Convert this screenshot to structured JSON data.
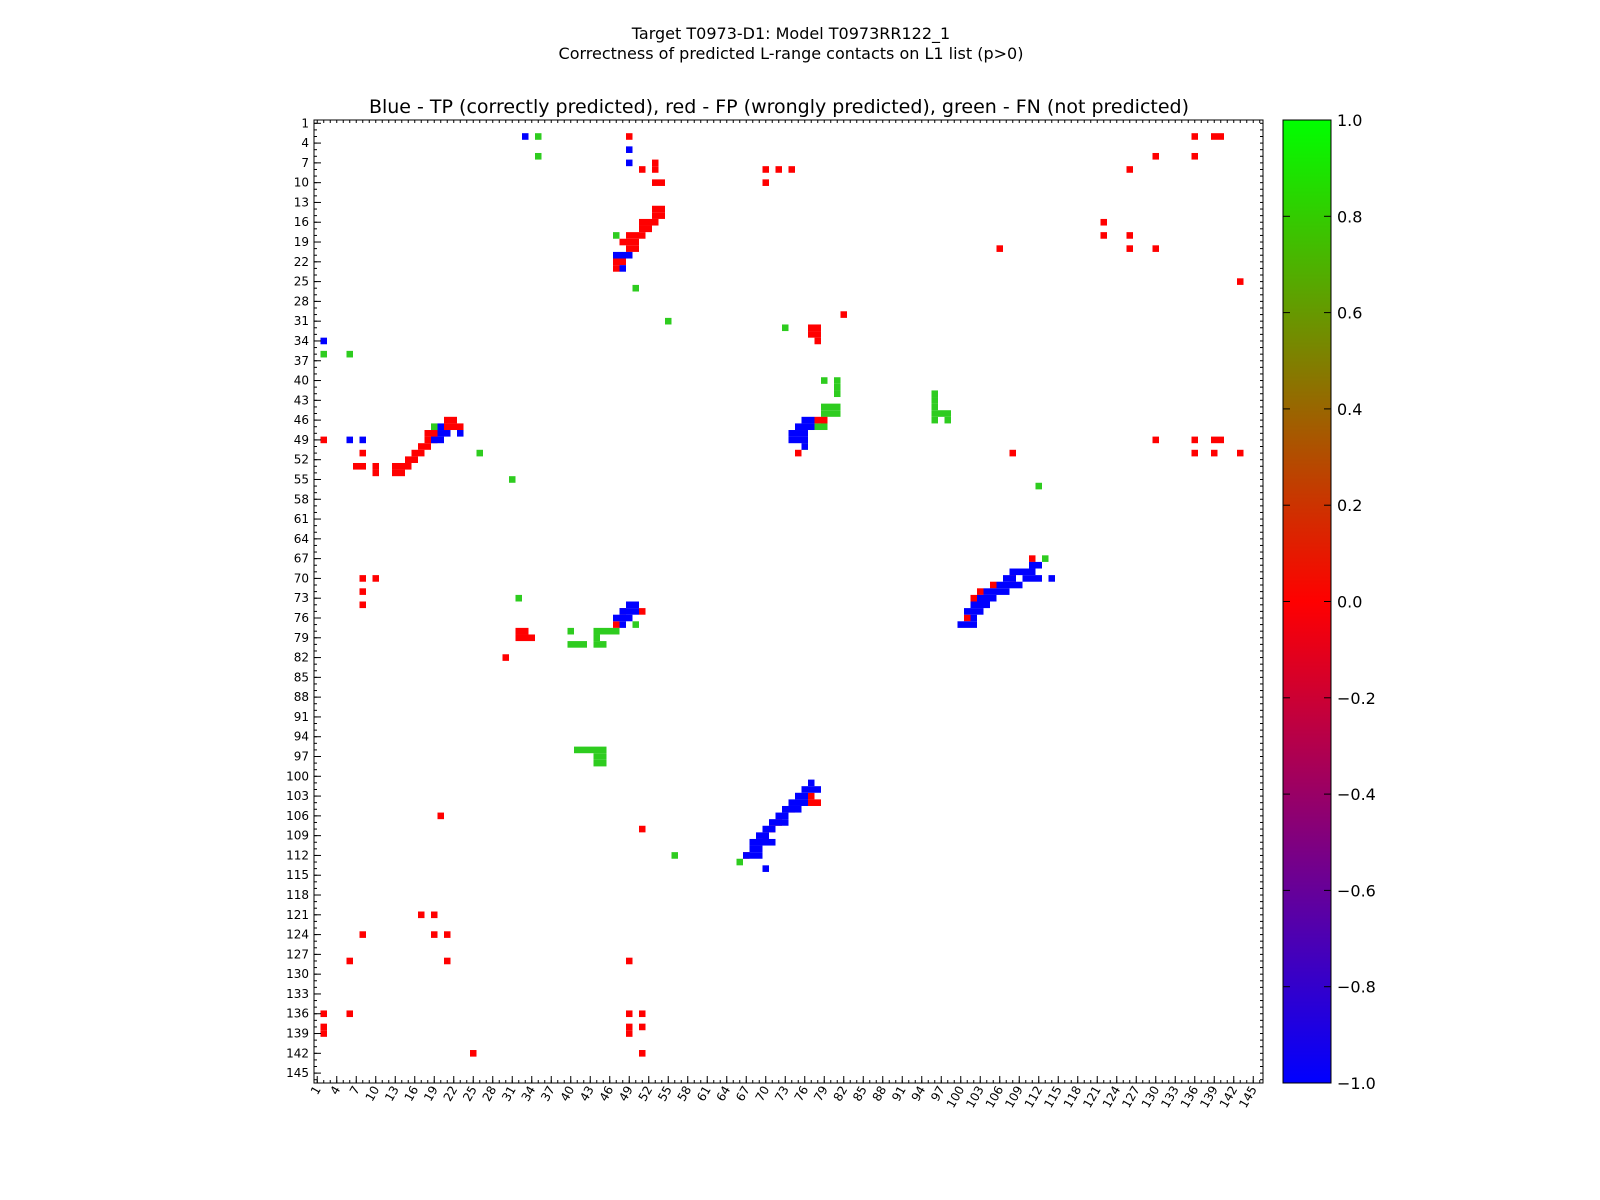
{
  "chart_data": {
    "type": "heatmap",
    "title_line1": "Target T0973-D1: Model T0973RR122_1",
    "title_line2": "Correctness of predicted L-range contacts on L1 list (p>0)",
    "subtitle": "Blue - TP (correctly predicted), red - FP (wrongly predicted), green - FN (not predicted)",
    "xlabel": "",
    "ylabel": "",
    "xlim": [
      1,
      146
    ],
    "ylim": [
      1,
      146
    ],
    "y_inverted": true,
    "grid": false,
    "ticks": [
      "1",
      "4",
      "7",
      "10",
      "13",
      "16",
      "19",
      "22",
      "25",
      "28",
      "31",
      "34",
      "37",
      "40",
      "43",
      "46",
      "49",
      "52",
      "55",
      "58",
      "61",
      "64",
      "67",
      "70",
      "73",
      "76",
      "79",
      "82",
      "85",
      "88",
      "91",
      "94",
      "97",
      "100",
      "103",
      "106",
      "109",
      "112",
      "115",
      "118",
      "121",
      "124",
      "127",
      "130",
      "133",
      "136",
      "139",
      "142",
      "145"
    ],
    "colorbar": {
      "min": -1.0,
      "max": 1.0,
      "ticks": [
        "1.0",
        "0.8",
        "0.6",
        "0.4",
        "0.2",
        "0.0",
        "−0.2",
        "−0.4",
        "−0.6",
        "−0.8",
        "−1.0"
      ],
      "colors": [
        "#0000ff",
        "#ff0000",
        "#00ff00"
      ]
    },
    "category_colors": {
      "TP": "#0000ff",
      "FP": "#ff0000",
      "FN": "#2ecc1f"
    },
    "points": {
      "TP": [
        [
          33,
          3
        ],
        [
          49,
          5
        ],
        [
          49,
          7
        ],
        [
          2,
          34
        ],
        [
          6,
          49
        ],
        [
          8,
          49
        ],
        [
          48,
          21
        ],
        [
          47,
          21
        ],
        [
          49,
          21
        ],
        [
          48,
          23
        ],
        [
          20,
          47
        ],
        [
          20,
          48
        ],
        [
          20,
          49
        ],
        [
          19,
          49
        ],
        [
          21,
          48
        ],
        [
          23,
          48
        ],
        [
          74,
          48
        ],
        [
          74,
          49
        ],
        [
          75,
          48
        ],
        [
          75,
          49
        ],
        [
          76,
          48
        ],
        [
          76,
          49
        ],
        [
          75,
          47
        ],
        [
          76,
          47
        ],
        [
          77,
          47
        ],
        [
          76,
          46
        ],
        [
          77,
          46
        ],
        [
          76,
          50
        ],
        [
          49,
          74
        ],
        [
          50,
          74
        ],
        [
          48,
          75
        ],
        [
          49,
          75
        ],
        [
          50,
          75
        ],
        [
          47,
          76
        ],
        [
          48,
          76
        ],
        [
          49,
          76
        ],
        [
          48,
          77
        ],
        [
          108,
          69
        ],
        [
          109,
          69
        ],
        [
          110,
          69
        ],
        [
          111,
          69
        ],
        [
          110,
          70
        ],
        [
          111,
          70
        ],
        [
          112,
          70
        ],
        [
          107,
          70
        ],
        [
          108,
          70
        ],
        [
          106,
          71
        ],
        [
          107,
          71
        ],
        [
          108,
          71
        ],
        [
          109,
          71
        ],
        [
          104,
          72
        ],
        [
          105,
          72
        ],
        [
          106,
          72
        ],
        [
          107,
          72
        ],
        [
          103,
          73
        ],
        [
          104,
          73
        ],
        [
          105,
          73
        ],
        [
          102,
          74
        ],
        [
          103,
          74
        ],
        [
          104,
          74
        ],
        [
          101,
          75
        ],
        [
          102,
          75
        ],
        [
          103,
          75
        ],
        [
          102,
          76
        ],
        [
          100,
          77
        ],
        [
          101,
          77
        ],
        [
          102,
          77
        ],
        [
          111,
          68
        ],
        [
          112,
          68
        ],
        [
          114,
          70
        ],
        [
          77,
          101
        ],
        [
          76,
          102
        ],
        [
          77,
          102
        ],
        [
          78,
          102
        ],
        [
          75,
          103
        ],
        [
          76,
          103
        ],
        [
          74,
          104
        ],
        [
          75,
          104
        ],
        [
          76,
          104
        ],
        [
          73,
          105
        ],
        [
          74,
          105
        ],
        [
          75,
          105
        ],
        [
          72,
          106
        ],
        [
          73,
          106
        ],
        [
          71,
          107
        ],
        [
          72,
          107
        ],
        [
          73,
          107
        ],
        [
          70,
          108
        ],
        [
          71,
          108
        ],
        [
          69,
          109
        ],
        [
          70,
          109
        ],
        [
          68,
          110
        ],
        [
          69,
          110
        ],
        [
          70,
          110
        ],
        [
          71,
          110
        ],
        [
          68,
          111
        ],
        [
          69,
          111
        ],
        [
          67,
          112
        ],
        [
          68,
          112
        ],
        [
          69,
          112
        ],
        [
          70,
          114
        ]
      ],
      "FP": [
        [
          49,
          3
        ],
        [
          136,
          3
        ],
        [
          139,
          3
        ],
        [
          140,
          3
        ],
        [
          130,
          6
        ],
        [
          136,
          6
        ],
        [
          53,
          7
        ],
        [
          51,
          8
        ],
        [
          53,
          8
        ],
        [
          70,
          8
        ],
        [
          72,
          8
        ],
        [
          74,
          8
        ],
        [
          126,
          8
        ],
        [
          53,
          10
        ],
        [
          54,
          10
        ],
        [
          70,
          10
        ],
        [
          53,
          14
        ],
        [
          54,
          14
        ],
        [
          53,
          15
        ],
        [
          54,
          15
        ],
        [
          51,
          16
        ],
        [
          52,
          16
        ],
        [
          51,
          17
        ],
        [
          52,
          17
        ],
        [
          53,
          16
        ],
        [
          49,
          18
        ],
        [
          50,
          18
        ],
        [
          51,
          18
        ],
        [
          48,
          19
        ],
        [
          49,
          19
        ],
        [
          50,
          19
        ],
        [
          49,
          20
        ],
        [
          50,
          20
        ],
        [
          47,
          22
        ],
        [
          48,
          22
        ],
        [
          47,
          23
        ],
        [
          106,
          20
        ],
        [
          122,
          16
        ],
        [
          122,
          18
        ],
        [
          126,
          18
        ],
        [
          126,
          20
        ],
        [
          130,
          20
        ],
        [
          143,
          25
        ],
        [
          82,
          30
        ],
        [
          77,
          32
        ],
        [
          78,
          32
        ],
        [
          77,
          33
        ],
        [
          78,
          33
        ],
        [
          78,
          34
        ],
        [
          21,
          46
        ],
        [
          22,
          46
        ],
        [
          21,
          47
        ],
        [
          22,
          47
        ],
        [
          23,
          47
        ],
        [
          18,
          48
        ],
        [
          19,
          48
        ],
        [
          18,
          49
        ],
        [
          19,
          49
        ],
        [
          17,
          50
        ],
        [
          18,
          50
        ],
        [
          16,
          51
        ],
        [
          17,
          51
        ],
        [
          8,
          51
        ],
        [
          15,
          52
        ],
        [
          16,
          52
        ],
        [
          7,
          53
        ],
        [
          8,
          53
        ],
        [
          10,
          53
        ],
        [
          13,
          53
        ],
        [
          14,
          53
        ],
        [
          15,
          53
        ],
        [
          10,
          54
        ],
        [
          13,
          54
        ],
        [
          14,
          54
        ],
        [
          2,
          49
        ],
        [
          78,
          46
        ],
        [
          79,
          46
        ],
        [
          75,
          51
        ],
        [
          108,
          51
        ],
        [
          130,
          49
        ],
        [
          136,
          49
        ],
        [
          139,
          49
        ],
        [
          140,
          49
        ],
        [
          136,
          51
        ],
        [
          139,
          51
        ],
        [
          143,
          51
        ],
        [
          111,
          67
        ],
        [
          8,
          70
        ],
        [
          10,
          70
        ],
        [
          8,
          72
        ],
        [
          8,
          74
        ],
        [
          48,
          75
        ],
        [
          51,
          75
        ],
        [
          47,
          77
        ],
        [
          32,
          78
        ],
        [
          33,
          78
        ],
        [
          32,
          79
        ],
        [
          33,
          79
        ],
        [
          34,
          79
        ],
        [
          30,
          82
        ],
        [
          108,
          70
        ],
        [
          105,
          71
        ],
        [
          103,
          72
        ],
        [
          102,
          73
        ],
        [
          101,
          76
        ],
        [
          77,
          103
        ],
        [
          77,
          104
        ],
        [
          78,
          104
        ],
        [
          74,
          105
        ],
        [
          72,
          107
        ],
        [
          71,
          108
        ],
        [
          70,
          109
        ],
        [
          67,
          112
        ],
        [
          20,
          106
        ],
        [
          51,
          108
        ],
        [
          17,
          121
        ],
        [
          19,
          121
        ],
        [
          8,
          124
        ],
        [
          19,
          124
        ],
        [
          21,
          124
        ],
        [
          6,
          128
        ],
        [
          21,
          128
        ],
        [
          49,
          128
        ],
        [
          2,
          136
        ],
        [
          6,
          136
        ],
        [
          49,
          136
        ],
        [
          51,
          136
        ],
        [
          2,
          138
        ],
        [
          2,
          139
        ],
        [
          49,
          138
        ],
        [
          49,
          139
        ],
        [
          51,
          138
        ],
        [
          25,
          142
        ],
        [
          51,
          142
        ]
      ],
      "FN": [
        [
          35,
          3
        ],
        [
          35,
          6
        ],
        [
          47,
          18
        ],
        [
          50,
          26
        ],
        [
          55,
          31
        ],
        [
          73,
          32
        ],
        [
          2,
          36
        ],
        [
          6,
          36
        ],
        [
          79,
          40
        ],
        [
          81,
          40
        ],
        [
          81,
          41
        ],
        [
          81,
          42
        ],
        [
          79,
          44
        ],
        [
          80,
          44
        ],
        [
          81,
          44
        ],
        [
          79,
          45
        ],
        [
          80,
          45
        ],
        [
          81,
          45
        ],
        [
          79,
          46
        ],
        [
          78,
          47
        ],
        [
          79,
          47
        ],
        [
          76,
          50
        ],
        [
          96,
          42
        ],
        [
          96,
          43
        ],
        [
          96,
          44
        ],
        [
          96,
          45
        ],
        [
          96,
          46
        ],
        [
          97,
          45
        ],
        [
          98,
          45
        ],
        [
          98,
          46
        ],
        [
          19,
          47
        ],
        [
          26,
          51
        ],
        [
          31,
          55
        ],
        [
          112,
          56
        ],
        [
          113,
          67
        ],
        [
          32,
          73
        ],
        [
          40,
          78
        ],
        [
          44,
          78
        ],
        [
          45,
          78
        ],
        [
          46,
          78
        ],
        [
          47,
          78
        ],
        [
          50,
          77
        ],
        [
          40,
          80
        ],
        [
          41,
          80
        ],
        [
          42,
          80
        ],
        [
          44,
          80
        ],
        [
          45,
          80
        ],
        [
          44,
          79
        ],
        [
          41,
          96
        ],
        [
          42,
          96
        ],
        [
          43,
          96
        ],
        [
          44,
          96
        ],
        [
          45,
          96
        ],
        [
          44,
          97
        ],
        [
          45,
          97
        ],
        [
          44,
          98
        ],
        [
          45,
          98
        ],
        [
          56,
          112
        ],
        [
          66,
          113
        ]
      ]
    }
  }
}
